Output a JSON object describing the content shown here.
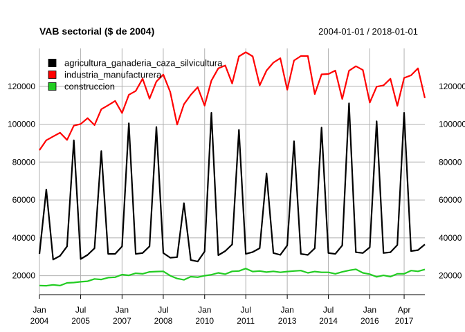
{
  "chart_data": {
    "type": "line",
    "title": "VAB sectorial ($ de 2004)",
    "date_range": "2004-01-01 / 2018-01-01",
    "grid": true,
    "legend_position": "top-left",
    "ylim": [
      10000,
      140000
    ],
    "y_ticks": [
      20000,
      40000,
      60000,
      80000,
      100000,
      120000
    ],
    "y_tick_labels": [
      "20000",
      "40000",
      "60000",
      "80000",
      "100000",
      "120000"
    ],
    "x_ticks": [
      {
        "date": "2004-01-01",
        "label1": "Jan",
        "label2": "2004"
      },
      {
        "date": "2005-07-01",
        "label1": "Jul",
        "label2": "2005"
      },
      {
        "date": "2007-01-01",
        "label1": "Jan",
        "label2": "2007"
      },
      {
        "date": "2008-07-01",
        "label1": "Jul",
        "label2": "2008"
      },
      {
        "date": "2010-01-01",
        "label1": "Jan",
        "label2": "2010"
      },
      {
        "date": "2011-07-01",
        "label1": "Jul",
        "label2": "2011"
      },
      {
        "date": "2013-01-01",
        "label1": "Jan",
        "label2": "2013"
      },
      {
        "date": "2014-07-01",
        "label1": "Jul",
        "label2": "2014"
      },
      {
        "date": "2016-01-01",
        "label1": "Jan",
        "label2": "2016"
      },
      {
        "date": "2017-04-01",
        "label1": "Apr",
        "label2": "2017"
      }
    ],
    "x_start": "2004-01-01",
    "x_end": "2018-01-01",
    "frequency": "quarterly",
    "series": [
      {
        "name": "agricultura_ganaderia_caza_silvicultura",
        "color": "#000000",
        "values": [
          31500,
          65500,
          28500,
          30500,
          35500,
          91500,
          28800,
          31000,
          34500,
          85800,
          31500,
          31500,
          35500,
          100500,
          31500,
          32000,
          35500,
          98500,
          32000,
          29500,
          29800,
          58300,
          28300,
          27500,
          32800,
          106000,
          30800,
          33000,
          36500,
          97000,
          31500,
          32500,
          34500,
          74000,
          32000,
          31000,
          36000,
          91000,
          31500,
          31000,
          34500,
          98200,
          32000,
          31500,
          36000,
          111000,
          32400,
          32000,
          35000,
          101500,
          32000,
          32400,
          36200,
          106000,
          33000,
          33500,
          36500
        ]
      },
      {
        "name": "industria_manufacturera",
        "color": "#ff0000",
        "values": [
          86300,
          91500,
          93500,
          95500,
          91700,
          99200,
          100100,
          103200,
          99500,
          107900,
          110000,
          112300,
          105900,
          115500,
          117500,
          124000,
          113500,
          122500,
          126200,
          117000,
          99800,
          110500,
          115500,
          119500,
          109800,
          123000,
          129500,
          131000,
          121500,
          135800,
          138000,
          135800,
          120500,
          128300,
          132500,
          134800,
          118200,
          133600,
          136000,
          136000,
          115900,
          126300,
          126500,
          128300,
          113300,
          128200,
          130600,
          128600,
          111400,
          119800,
          120500,
          124000,
          109700,
          124400,
          125800,
          129500,
          113800
        ]
      },
      {
        "name": "construccion",
        "color": "#22cc22",
        "values": [
          14800,
          14700,
          15200,
          14800,
          16200,
          16400,
          16800,
          17100,
          18300,
          18000,
          19000,
          19200,
          20600,
          20200,
          21300,
          21000,
          22000,
          22200,
          22300,
          20000,
          18500,
          17800,
          19500,
          19200,
          20000,
          20500,
          21500,
          20800,
          22300,
          22500,
          23800,
          22200,
          22500,
          21900,
          22300,
          21800,
          22200,
          22500,
          22700,
          21500,
          22200,
          21800,
          21800,
          21000,
          22000,
          22800,
          23400,
          21500,
          20800,
          19400,
          20200,
          19500,
          21000,
          21000,
          22700,
          22300,
          23300
        ]
      }
    ]
  }
}
